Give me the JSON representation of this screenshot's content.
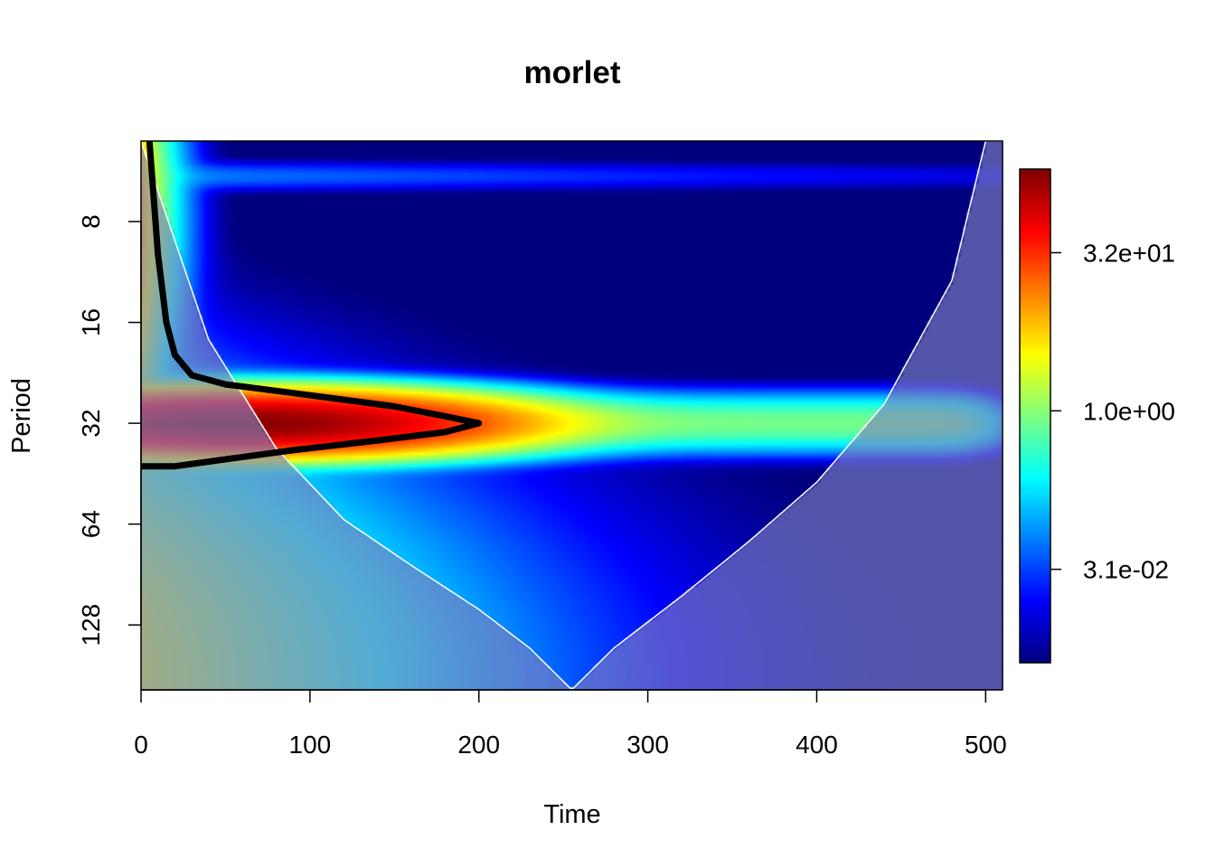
{
  "chart_data": {
    "type": "heatmap",
    "title": "morlet",
    "xlabel": "Time",
    "ylabel": "Period",
    "xlim": [
      0,
      510
    ],
    "ylim": [
      4.6,
      200
    ],
    "y_scale": "log2",
    "y_reversed": true,
    "x_ticks": [
      0,
      100,
      200,
      300,
      400,
      500
    ],
    "y_ticks": [
      8,
      16,
      32,
      64,
      128
    ],
    "colorbar": {
      "ticks": [
        "3.1e-02",
        "1.0e+00",
        "3.2e+01"
      ],
      "tick_values": [
        0.031,
        1.0,
        32.0
      ],
      "range": [
        0.004,
        200
      ],
      "scale": "log",
      "colors": [
        "#00007F",
        "#0000FF",
        "#007FFF",
        "#00FFFF",
        "#7FFF7F",
        "#FFFF00",
        "#FF7F00",
        "#FF0000",
        "#7F0000"
      ]
    },
    "ridges": [
      {
        "period": 32,
        "x_range": [
          0,
          495
        ],
        "peak_time": 60,
        "note": "dominant band"
      }
    ],
    "cone_of_influence": {
      "x": [
        0,
        40,
        80,
        120,
        160,
        200,
        230,
        255,
        280,
        320,
        360,
        400,
        440,
        480,
        500
      ],
      "period": [
        4.6,
        18,
        38,
        62,
        85,
        115,
        150,
        200,
        150,
        105,
        72,
        48,
        28,
        12,
        4.6
      ]
    },
    "significance_contour": {
      "x": [
        5,
        10,
        15,
        20,
        30,
        50,
        90,
        150,
        180,
        200,
        180,
        140,
        90,
        50,
        20,
        0
      ],
      "period": [
        4.6,
        10,
        16,
        20,
        23,
        24.5,
        26,
        28.5,
        30.5,
        32,
        34,
        36,
        38.5,
        41,
        43,
        43
      ]
    },
    "colors": {
      "coi_shade": "#7F7FBF",
      "contour": "#000000",
      "coi_line": "#FFFFFF"
    }
  }
}
